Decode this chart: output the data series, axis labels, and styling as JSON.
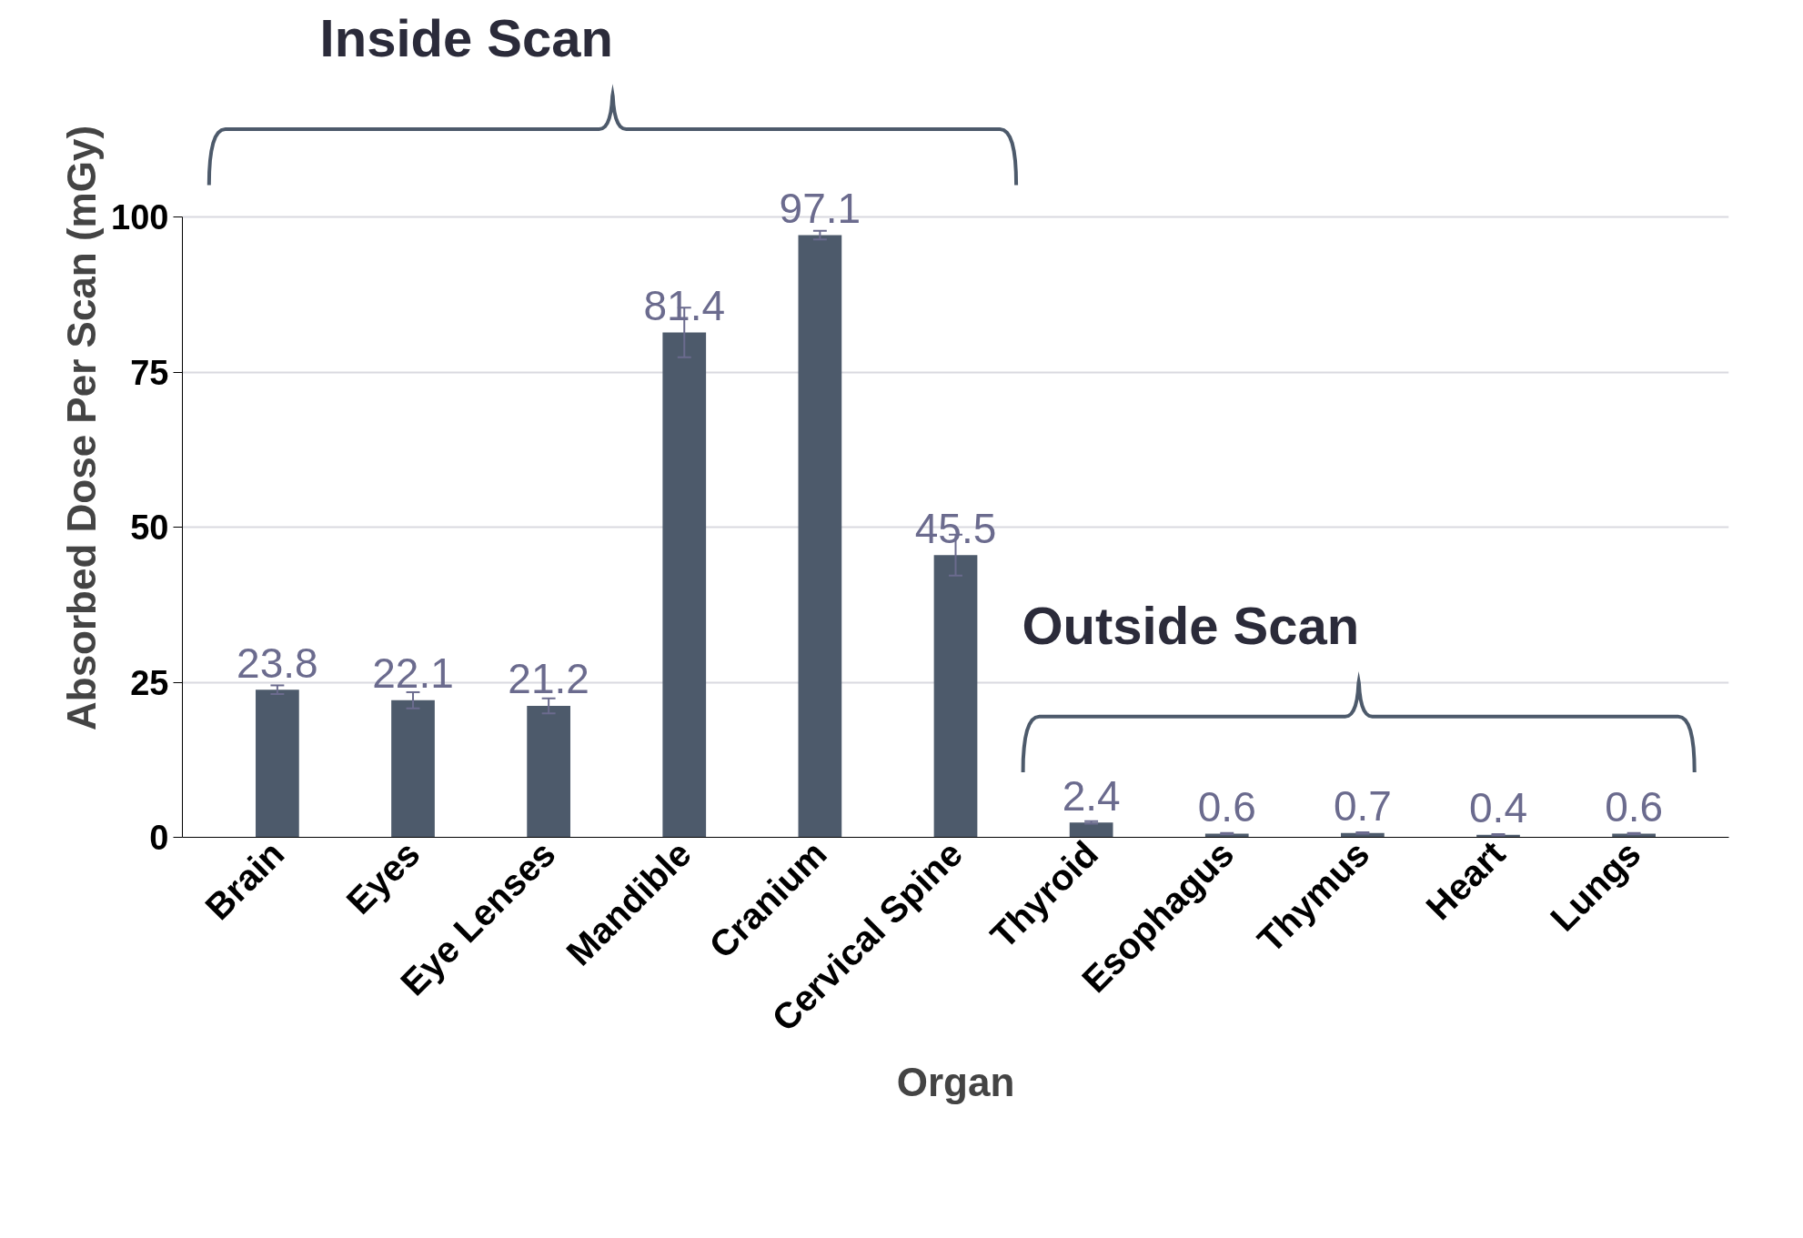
{
  "chart_data": {
    "type": "bar",
    "xlabel": "Organ",
    "ylabel": "Absorbed Dose Per Scan (mGy)",
    "categories": [
      "Brain",
      "Eyes",
      "Eye Lenses",
      "Mandible",
      "Cranium",
      "Cervical Spine",
      "Thyroid",
      "Esophagus",
      "Thymus",
      "Heart",
      "Lungs"
    ],
    "values": [
      23.8,
      22.1,
      21.2,
      81.4,
      97.1,
      45.5,
      2.4,
      0.6,
      0.7,
      0.4,
      0.6
    ],
    "errors": [
      0.7,
      1.3,
      1.2,
      4.0,
      0.7,
      3.3,
      0.2,
      0.1,
      0.1,
      0.1,
      0.1
    ],
    "color": "#4d5a6b",
    "data_labels": true,
    "ylim": [
      0,
      100
    ],
    "yticks": [
      0,
      25,
      50,
      75,
      100
    ],
    "grid": "y",
    "annotations": [
      "Inside Scan",
      "Outside Scan"
    ]
  }
}
